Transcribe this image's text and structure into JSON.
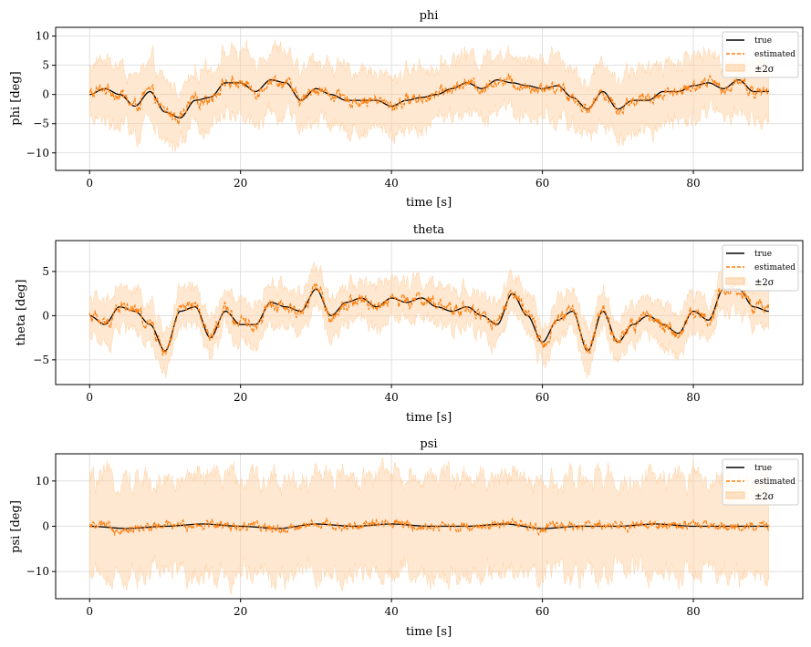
{
  "colors": {
    "true": "#000000",
    "estimated": "#ff7f0e",
    "band": "#ffcc99",
    "grid": "#d9d9d9"
  },
  "chart_data": [
    {
      "type": "line",
      "title": "phi",
      "xlabel": "time [s]",
      "ylabel": "phi [deg]",
      "xlim": [
        -4.5,
        94.5
      ],
      "ylim": [
        -13,
        11.5
      ],
      "xticks": [
        0,
        20,
        40,
        60,
        80
      ],
      "xtick_labels": [
        "0",
        "20",
        "40",
        "60",
        "80"
      ],
      "yticks": [
        -10,
        -5,
        0,
        5,
        10
      ],
      "ytick_labels": [
        "−10",
        "−5",
        "0",
        "5",
        "10"
      ],
      "grid": true,
      "legend": {
        "position": "top-right",
        "entries": [
          "true",
          "estimated",
          "±2σ"
        ]
      },
      "t_range": [
        0,
        90
      ],
      "sigma2": 5.0,
      "true_keypoints": {
        "t": [
          0,
          2,
          4,
          6,
          8,
          10,
          12,
          14,
          16,
          18,
          20,
          22,
          24,
          26,
          28,
          30,
          32,
          34,
          36,
          38,
          40,
          42,
          44,
          46,
          48,
          50,
          52,
          54,
          56,
          58,
          60,
          62,
          64,
          66,
          68,
          70,
          72,
          74,
          76,
          78,
          80,
          82,
          84,
          86,
          88,
          90
        ],
        "y": [
          0,
          1,
          0,
          -2,
          0.5,
          -3,
          -4,
          -1,
          -0.5,
          2,
          2,
          0.5,
          2.5,
          2,
          -1,
          1,
          0,
          -1,
          -1,
          -1,
          -2,
          -1,
          -0.5,
          0,
          1,
          2,
          1,
          2.5,
          2,
          1.5,
          1,
          1.5,
          -0.5,
          -2.5,
          0.5,
          -2.5,
          -1,
          -1,
          0.5,
          0.5,
          1.5,
          2,
          1,
          2.5,
          0.5,
          0.5
        ]
      },
      "estimated_noise": 0.8
    },
    {
      "type": "line",
      "title": "theta",
      "xlabel": "time [s]",
      "ylabel": "theta [deg]",
      "xlim": [
        -4.5,
        94.5
      ],
      "ylim": [
        -7.8,
        8.5
      ],
      "xticks": [
        0,
        20,
        40,
        60,
        80
      ],
      "xtick_labels": [
        "0",
        "20",
        "40",
        "60",
        "80"
      ],
      "yticks": [
        -5,
        0,
        5
      ],
      "ytick_labels": [
        "−5",
        "0",
        "5"
      ],
      "grid": true,
      "legend": {
        "position": "top-right",
        "entries": [
          "true",
          "estimated",
          "±2σ"
        ]
      },
      "t_range": [
        0,
        90
      ],
      "sigma2": 2.2,
      "true_keypoints": {
        "t": [
          0,
          2,
          4,
          6,
          8,
          10,
          12,
          14,
          16,
          18,
          20,
          22,
          24,
          26,
          28,
          30,
          32,
          34,
          36,
          38,
          40,
          42,
          44,
          46,
          48,
          50,
          52,
          54,
          56,
          58,
          60,
          62,
          64,
          66,
          68,
          70,
          72,
          74,
          76,
          78,
          80,
          82,
          84,
          86,
          88,
          90
        ],
        "y": [
          0,
          -1,
          1,
          0.5,
          -1,
          -4,
          0.5,
          1,
          -2.5,
          0.5,
          -1,
          -1,
          1.5,
          1,
          0.5,
          3,
          0,
          1.5,
          2,
          1,
          2,
          1.5,
          2,
          1,
          0.5,
          1,
          0,
          -1,
          2.5,
          0,
          -3,
          -0.5,
          0.5,
          -4,
          0.5,
          -3,
          -1,
          0,
          -1,
          -2,
          0.5,
          -0.5,
          3,
          3,
          1,
          0.5
        ]
      },
      "estimated_noise": 0.6
    },
    {
      "type": "line",
      "title": "psi",
      "xlabel": "time [s]",
      "ylabel": "psi [deg]",
      "xlim": [
        -4.5,
        94.5
      ],
      "ylim": [
        -16,
        16
      ],
      "xticks": [
        0,
        20,
        40,
        60,
        80
      ],
      "xtick_labels": [
        "0",
        "20",
        "40",
        "60",
        "80"
      ],
      "yticks": [
        -10,
        0,
        10
      ],
      "ytick_labels": [
        "−10",
        "0",
        "10"
      ],
      "grid": true,
      "legend": {
        "position": "top-right",
        "entries": [
          "true",
          "estimated",
          "±2σ"
        ]
      },
      "t_range": [
        0,
        90
      ],
      "sigma2": 10.5,
      "true_keypoints": {
        "t": [
          0,
          5,
          10,
          15,
          20,
          25,
          30,
          35,
          40,
          45,
          50,
          55,
          60,
          65,
          70,
          75,
          80,
          85,
          90
        ],
        "y": [
          0,
          -0.5,
          0,
          0.5,
          0,
          -0.5,
          0.5,
          0,
          0.5,
          0,
          0,
          0.5,
          -0.5,
          0,
          0,
          0.5,
          0,
          0,
          0
        ]
      },
      "estimated_noise": 0.8
    }
  ]
}
